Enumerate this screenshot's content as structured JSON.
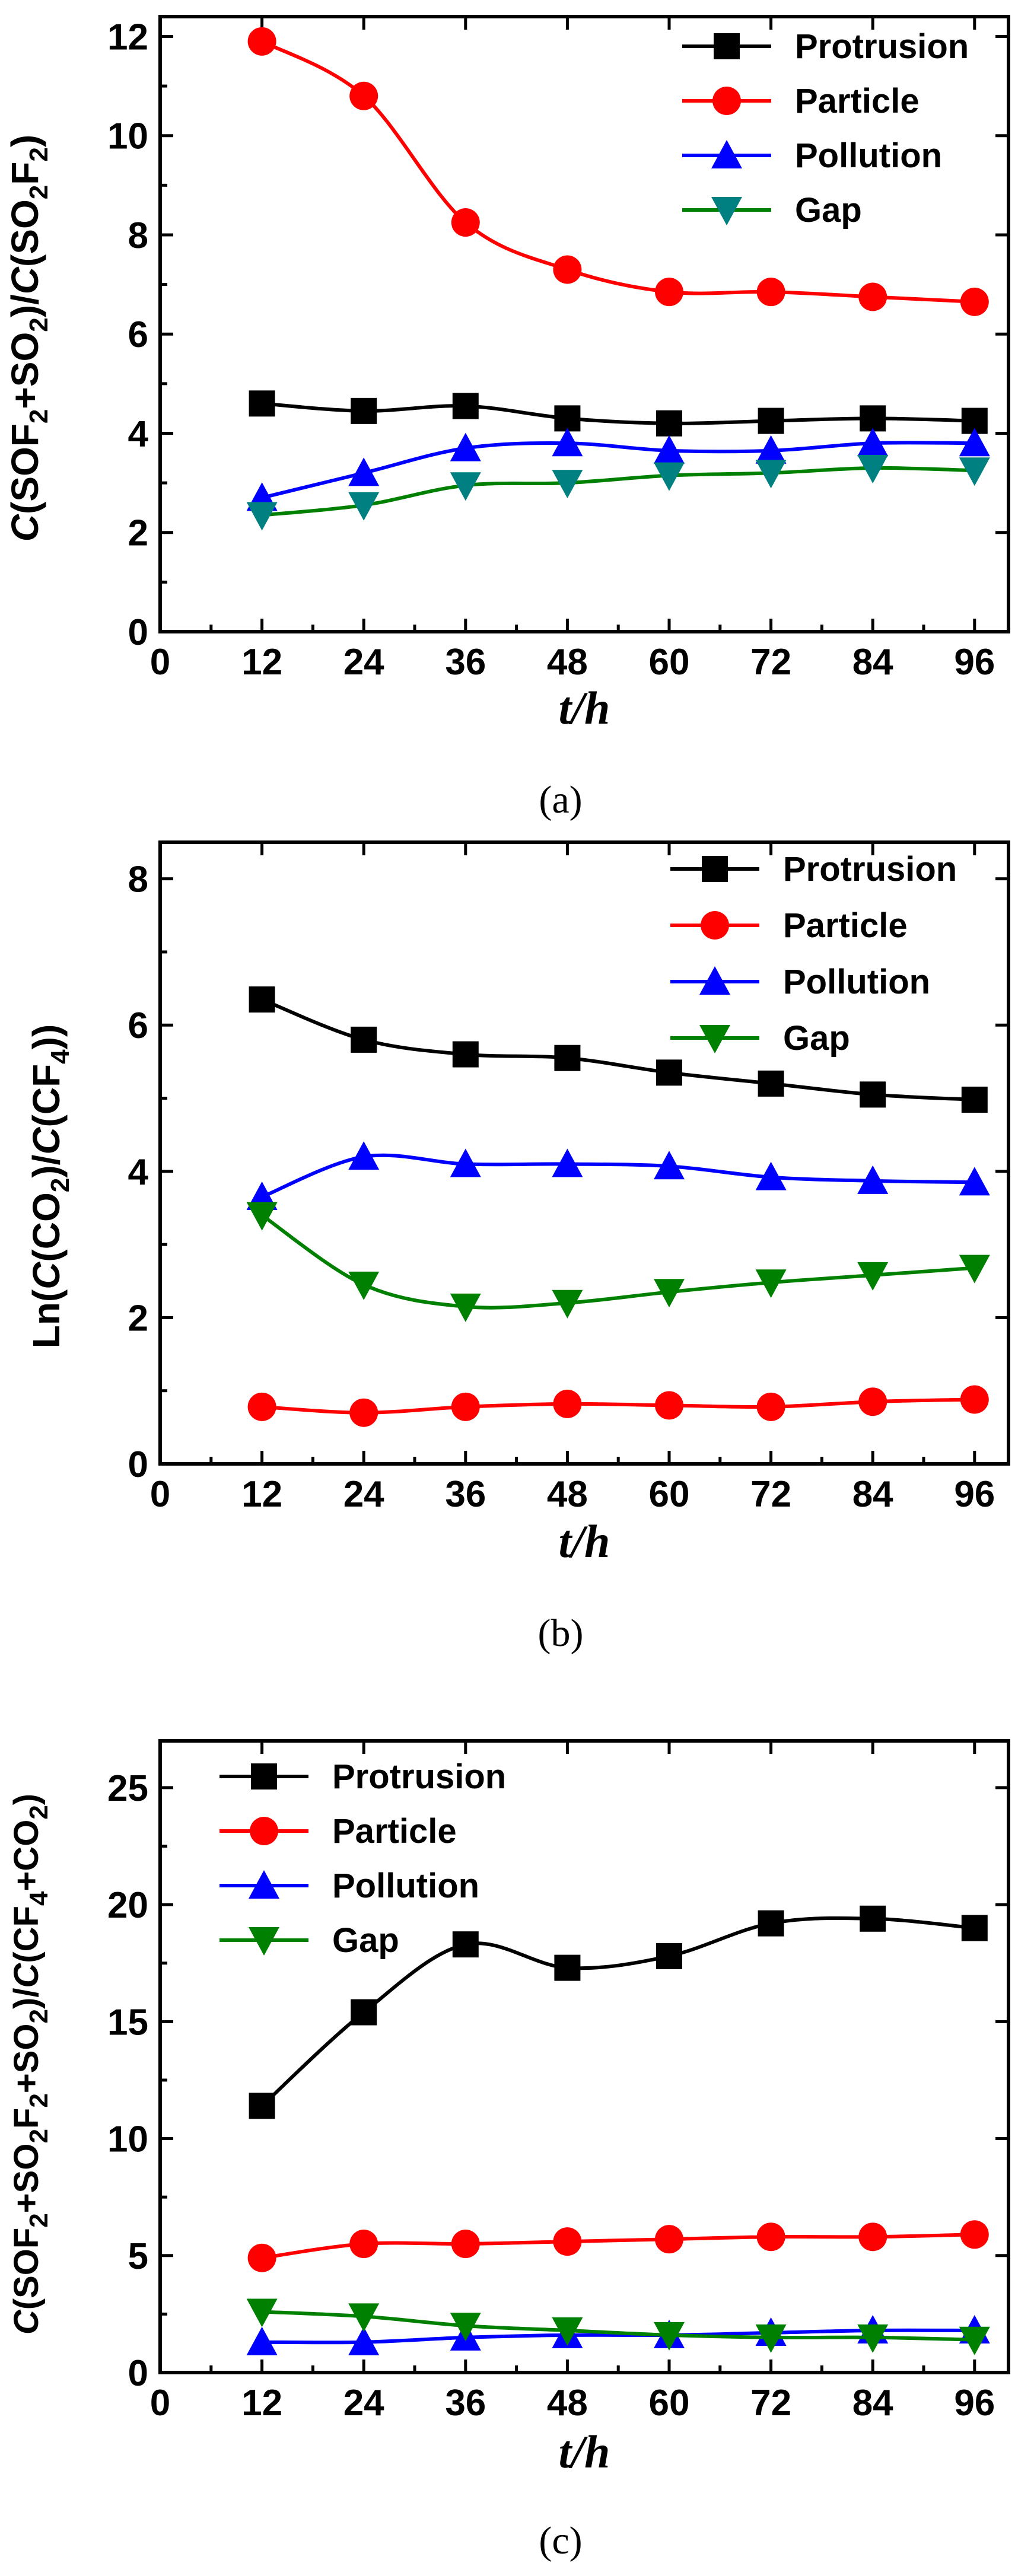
{
  "colors": {
    "Protrusion": "#000000",
    "Particle": "#ff0000",
    "Pollution": "#0000ff",
    "Gap": "#008000",
    "Gap_markers_a": "#008080"
  },
  "chart_data": [
    {
      "id": "a",
      "type": "line",
      "caption": "(a)",
      "xlabel": "t/h",
      "ylabel": "C(SOF2+SO2)/C(SO2F2)",
      "x": [
        12,
        24,
        36,
        48,
        60,
        72,
        84,
        96
      ],
      "xlim": [
        0,
        100
      ],
      "xticks": [
        0,
        12,
        24,
        36,
        48,
        60,
        72,
        84,
        96
      ],
      "ylim": [
        0,
        12.4
      ],
      "yticks": [
        0,
        2,
        4,
        6,
        8,
        10,
        12
      ],
      "legend_position": "top-right",
      "series": [
        {
          "name": "Protrusion",
          "marker": "square",
          "values": [
            4.6,
            4.45,
            4.55,
            4.3,
            4.2,
            4.25,
            4.3,
            4.25
          ]
        },
        {
          "name": "Particle",
          "marker": "circle",
          "values": [
            11.9,
            10.8,
            8.25,
            7.3,
            6.85,
            6.85,
            6.75,
            6.65
          ]
        },
        {
          "name": "Pollution",
          "marker": "triangle-up",
          "values": [
            2.7,
            3.2,
            3.7,
            3.8,
            3.65,
            3.65,
            3.8,
            3.8
          ]
        },
        {
          "name": "Gap",
          "marker": "triangle-down",
          "values": [
            2.35,
            2.55,
            2.95,
            3.0,
            3.15,
            3.2,
            3.3,
            3.25
          ]
        }
      ]
    },
    {
      "id": "b",
      "type": "line",
      "caption": "(b)",
      "xlabel": "t/h",
      "ylabel": "Ln(C(CO2)/C(CF4))",
      "x": [
        12,
        24,
        36,
        48,
        60,
        72,
        84,
        96
      ],
      "xlim": [
        0,
        100
      ],
      "xticks": [
        0,
        12,
        24,
        36,
        48,
        60,
        72,
        84,
        96
      ],
      "ylim": [
        0,
        8.5
      ],
      "yticks": [
        0,
        2,
        4,
        6,
        8
      ],
      "legend_position": "top-right",
      "series": [
        {
          "name": "Protrusion",
          "marker": "square",
          "values": [
            6.35,
            5.8,
            5.6,
            5.55,
            5.35,
            5.2,
            5.05,
            4.98
          ]
        },
        {
          "name": "Particle",
          "marker": "circle",
          "values": [
            0.78,
            0.7,
            0.78,
            0.82,
            0.8,
            0.78,
            0.85,
            0.88
          ]
        },
        {
          "name": "Pollution",
          "marker": "triangle-up",
          "values": [
            3.65,
            4.2,
            4.1,
            4.1,
            4.07,
            3.92,
            3.87,
            3.85
          ]
        },
        {
          "name": "Gap",
          "marker": "triangle-down",
          "values": [
            3.4,
            2.45,
            2.15,
            2.2,
            2.35,
            2.48,
            2.58,
            2.68
          ]
        }
      ]
    },
    {
      "id": "c",
      "type": "line",
      "caption": "(c)",
      "xlabel": "t/h",
      "ylabel": "C(SOF2+SO2F2+SO2)/C(CF4+CO2)",
      "x": [
        12,
        24,
        36,
        48,
        60,
        72,
        84,
        96
      ],
      "xlim": [
        0,
        100
      ],
      "xticks": [
        0,
        12,
        24,
        36,
        48,
        60,
        72,
        84,
        96
      ],
      "ylim": [
        0,
        27
      ],
      "yticks": [
        0,
        5,
        10,
        15,
        20,
        25
      ],
      "legend_position": "top-left",
      "series": [
        {
          "name": "Protrusion",
          "marker": "square",
          "values": [
            11.4,
            15.4,
            18.3,
            17.3,
            17.8,
            19.2,
            19.4,
            19.0
          ]
        },
        {
          "name": "Particle",
          "marker": "circle",
          "values": [
            4.9,
            5.5,
            5.5,
            5.6,
            5.7,
            5.8,
            5.8,
            5.9
          ]
        },
        {
          "name": "Pollution",
          "marker": "triangle-up",
          "values": [
            1.3,
            1.3,
            1.5,
            1.6,
            1.6,
            1.7,
            1.8,
            1.8
          ]
        },
        {
          "name": "Gap",
          "marker": "triangle-down",
          "values": [
            2.6,
            2.4,
            2.0,
            1.8,
            1.6,
            1.5,
            1.5,
            1.4
          ]
        }
      ]
    }
  ]
}
